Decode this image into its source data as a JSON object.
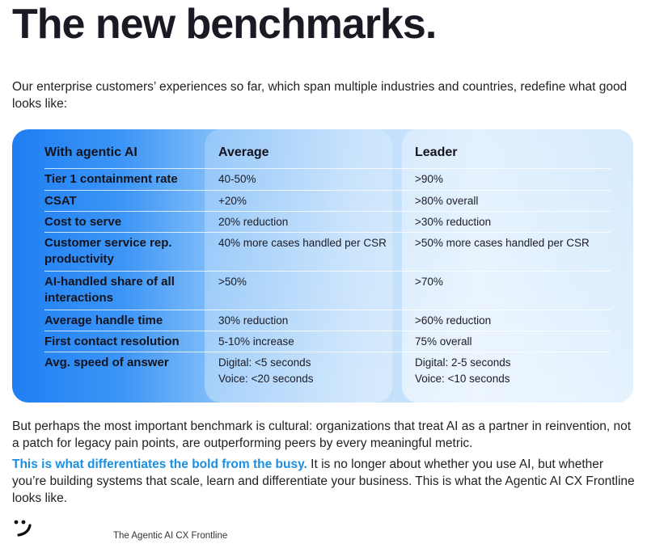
{
  "title": "The new benchmarks.",
  "intro": "Our enterprise customers’ experiences so far, which span multiple industries and countries, redefine what good looks like:",
  "table": {
    "headers": [
      "With agentic AI",
      "Average",
      "Leader"
    ],
    "rows": [
      {
        "label": "Tier 1 containment rate",
        "average": "40-50%",
        "leader": ">90%"
      },
      {
        "label": "CSAT",
        "average": "+20%",
        "leader": ">80% overall"
      },
      {
        "label": "Cost to serve",
        "average": "20% reduction",
        "leader": ">30% reduction"
      },
      {
        "label": "Customer service rep. productivity",
        "average": "40% more cases handled per CSR",
        "leader": ">50% more cases handled per CSR"
      },
      {
        "label": "AI-handled share of all interactions",
        "average": ">50%",
        "leader": ">70%"
      },
      {
        "label": "Average handle time",
        "average": "30% reduction",
        "leader": ">60% reduction"
      },
      {
        "label": "First contact resolution",
        "average": "5-10% increase",
        "leader": "75% overall"
      },
      {
        "label": "Avg. speed of answer",
        "average": "Digital: <5 seconds",
        "average2": "Voice: <20 seconds",
        "leader": "Digital: 2-5 seconds",
        "leader2": "Voice: <10 seconds"
      }
    ]
  },
  "paragraph1": "But perhaps the most important benchmark is cultural: organizations that treat AI as a partner in reinvention, not a patch for legacy pain points, are outperforming peers by every meaningful metric.",
  "paragraph2_highlight": "This is what differentiates the bold from the busy.",
  "paragraph2_rest": " It is no longer about whether you use AI, but whether you’re building systems that scale, learn and differentiate your business. This is what the Agentic AI CX Frontline looks like.",
  "footer": "The Agentic AI CX Frontline",
  "logo_icon": "smile-logo-icon"
}
